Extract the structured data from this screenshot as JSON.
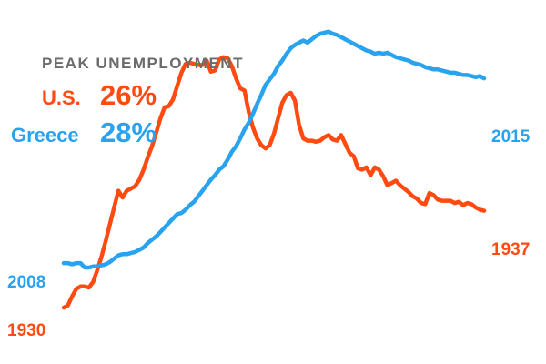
{
  "chart_data": {
    "type": "line",
    "title": "PEAK UNEMPLOYMENT",
    "xlabel": "",
    "ylabel": "",
    "x_note": "",
    "peaks": [
      {
        "name": "U.S.",
        "value": "26%",
        "color": "#ff4a12"
      },
      {
        "name": "Greece",
        "value": "28%",
        "color": "#29a3f0"
      }
    ],
    "ylim": [
      0,
      30
    ],
    "xlim": [
      0,
      100
    ],
    "series": [
      {
        "name": "U.S.",
        "color": "#ff4a12",
        "start_label": "1930",
        "end_label": "1937",
        "x": [
          0,
          1,
          2,
          3,
          4,
          5,
          6,
          7,
          8,
          9,
          10,
          11,
          12,
          13,
          14,
          15,
          16,
          17,
          18,
          19,
          20,
          21,
          22,
          23,
          24,
          25,
          26,
          27,
          28,
          29,
          30,
          31,
          32,
          33,
          34,
          35,
          36,
          37,
          38,
          39,
          40,
          41,
          42,
          43,
          44,
          45,
          46,
          47,
          48,
          49,
          50,
          51,
          52,
          53,
          54,
          55,
          56,
          57,
          58,
          59,
          60,
          61,
          62,
          63,
          64,
          65,
          66,
          67,
          68,
          69,
          70,
          71,
          72,
          73,
          74,
          75,
          76,
          77,
          78,
          79,
          80,
          81,
          82,
          83,
          84,
          85,
          86,
          87,
          88,
          89,
          90,
          91,
          92,
          93,
          94,
          95,
          96,
          97,
          98,
          99,
          100
        ],
        "y": [
          4.0,
          4.2,
          5.0,
          5.7,
          5.9,
          5.9,
          5.8,
          6.3,
          7.4,
          8.6,
          10.0,
          11.5,
          13.0,
          14.5,
          13.9,
          14.5,
          14.7,
          14.9,
          15.5,
          16.4,
          17.5,
          18.5,
          19.7,
          21.0,
          22.0,
          22.1,
          22.7,
          23.9,
          25.1,
          25.9,
          26.0,
          25.9,
          25.8,
          25.8,
          26.2,
          25.2,
          25.3,
          26.3,
          26.5,
          26.4,
          25.7,
          24.6,
          23.7,
          23.5,
          21.6,
          20.2,
          19.2,
          18.6,
          18.3,
          18.6,
          19.6,
          21.0,
          22.4,
          23.1,
          23.3,
          22.6,
          20.4,
          19.2,
          19.0,
          19.0,
          18.9,
          19.0,
          19.3,
          19.5,
          19.1,
          19.0,
          19.5,
          18.7,
          17.9,
          17.6,
          16.5,
          16.4,
          16.6,
          15.9,
          16.6,
          16.4,
          15.8,
          15.0,
          15.2,
          15.4,
          15.0,
          14.7,
          14.4,
          14.0,
          13.8,
          13.4,
          13.3,
          14.3,
          14.1,
          13.7,
          13.6,
          13.6,
          13.6,
          13.4,
          13.5,
          13.2,
          13.4,
          13.3,
          13.0,
          12.8,
          12.7
        ]
      },
      {
        "name": "Greece",
        "color": "#29a3f0",
        "start_label": "2008",
        "end_label": "2015",
        "x": [
          0,
          1,
          2,
          3,
          4,
          5,
          6,
          7,
          8,
          9,
          10,
          11,
          12,
          13,
          14,
          15,
          16,
          17,
          18,
          19,
          20,
          21,
          22,
          23,
          24,
          25,
          26,
          27,
          28,
          29,
          30,
          31,
          32,
          33,
          34,
          35,
          36,
          37,
          38,
          39,
          40,
          41,
          42,
          43,
          44,
          45,
          46,
          47,
          48,
          49,
          50,
          51,
          52,
          53,
          54,
          55,
          56,
          57,
          58,
          59,
          60,
          61,
          62,
          63,
          64,
          65,
          66,
          67,
          68,
          69,
          70,
          71,
          72,
          73,
          74,
          75,
          76,
          77,
          78,
          79,
          80,
          81,
          82,
          83,
          84,
          85,
          86,
          87,
          88,
          89,
          90,
          91,
          92,
          93,
          94,
          95,
          96,
          97,
          98,
          99,
          100
        ],
        "y": [
          8.0,
          8.0,
          7.9,
          8.0,
          8.0,
          7.6,
          7.6,
          7.7,
          7.7,
          7.8,
          7.9,
          8.1,
          8.4,
          8.7,
          8.8,
          8.8,
          8.9,
          9.0,
          9.2,
          9.4,
          9.8,
          10.1,
          10.4,
          10.8,
          11.2,
          11.6,
          12.0,
          12.4,
          12.5,
          12.8,
          13.2,
          13.5,
          14.0,
          14.5,
          15.0,
          15.5,
          15.9,
          16.4,
          16.7,
          17.3,
          18.0,
          18.5,
          19.2,
          20.0,
          20.6,
          21.4,
          22.3,
          23.1,
          24.0,
          24.5,
          25.0,
          25.7,
          26.2,
          26.8,
          27.3,
          27.6,
          27.8,
          28.0,
          27.8,
          28.1,
          28.4,
          28.6,
          28.7,
          28.8,
          28.6,
          28.5,
          28.3,
          28.1,
          27.9,
          27.7,
          27.5,
          27.3,
          27.1,
          27.0,
          26.8,
          26.9,
          26.8,
          26.9,
          26.7,
          26.5,
          26.4,
          26.3,
          26.2,
          26.0,
          25.9,
          25.8,
          25.6,
          25.5,
          25.4,
          25.4,
          25.3,
          25.2,
          25.1,
          25.1,
          25.0,
          24.9,
          24.9,
          24.8,
          24.7,
          24.8,
          24.6
        ]
      }
    ]
  }
}
